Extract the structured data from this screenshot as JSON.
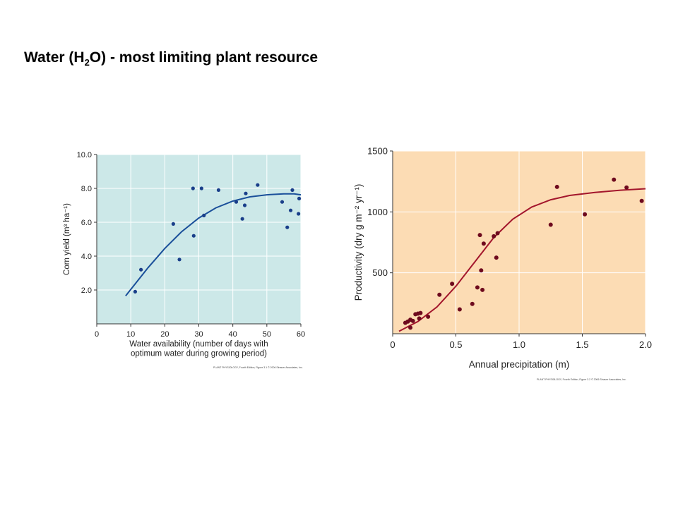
{
  "slide": {
    "title_pre": "Water (H",
    "title_sub": "2",
    "title_post": "O) - most limiting plant resource"
  },
  "chart_data": [
    {
      "type": "scatter",
      "has_fit_curve": true,
      "background": "#cce8e8",
      "point_color": "#1a3f8a",
      "curve_color": "#1a4f9a",
      "xlabel": [
        "Water availability (number of days with",
        "optimum water during growing period)"
      ],
      "ylabel": "Corn yield (m³ ha⁻¹)",
      "xlim": [
        0,
        60
      ],
      "ylim": [
        0,
        10
      ],
      "x_ticks": [
        0,
        10,
        20,
        30,
        40,
        50,
        60
      ],
      "x_tick_labels": [
        "0",
        "10",
        "20",
        "30",
        "40",
        "50",
        "60"
      ],
      "y_ticks": [
        2,
        4,
        6,
        8,
        10
      ],
      "y_tick_labels": [
        "2.0",
        "4.0",
        "6.0",
        "8.0",
        "10.0"
      ],
      "grid": true,
      "points": [
        {
          "x": 11.3,
          "y": 1.9
        },
        {
          "x": 13,
          "y": 3.2
        },
        {
          "x": 22.5,
          "y": 5.9
        },
        {
          "x": 24.3,
          "y": 3.8
        },
        {
          "x": 28.3,
          "y": 8.0
        },
        {
          "x": 28.5,
          "y": 5.2
        },
        {
          "x": 30.8,
          "y": 8.0
        },
        {
          "x": 31.5,
          "y": 6.4
        },
        {
          "x": 35.8,
          "y": 7.9
        },
        {
          "x": 41,
          "y": 7.2
        },
        {
          "x": 42.8,
          "y": 6.2
        },
        {
          "x": 43.5,
          "y": 7.0
        },
        {
          "x": 43.8,
          "y": 7.7
        },
        {
          "x": 47.3,
          "y": 8.2
        },
        {
          "x": 54.5,
          "y": 7.2
        },
        {
          "x": 56,
          "y": 5.7
        },
        {
          "x": 57,
          "y": 6.7
        },
        {
          "x": 57.5,
          "y": 7.9
        },
        {
          "x": 59.3,
          "y": 6.5
        },
        {
          "x": 59.5,
          "y": 7.4
        }
      ],
      "curve": [
        {
          "x": 8.5,
          "y": 1.65
        },
        {
          "x": 15,
          "y": 3.3
        },
        {
          "x": 20,
          "y": 4.45
        },
        {
          "x": 25,
          "y": 5.45
        },
        {
          "x": 30,
          "y": 6.25
        },
        {
          "x": 35,
          "y": 6.85
        },
        {
          "x": 40,
          "y": 7.25
        },
        {
          "x": 45,
          "y": 7.5
        },
        {
          "x": 50,
          "y": 7.62
        },
        {
          "x": 55,
          "y": 7.68
        },
        {
          "x": 58,
          "y": 7.68
        },
        {
          "x": 60,
          "y": 7.62
        }
      ],
      "credit": "PLANT PHYSIOLOGY, Fourth Edition, Figure 3.1 © 2006 Sinauer Associates, Inc."
    },
    {
      "type": "scatter",
      "has_fit_curve": true,
      "background": "#fcdcb4",
      "point_color": "#6e0a1e",
      "curve_color": "#a3162c",
      "xlabel": "Annual precipitation (m)",
      "ylabel": "Productivity (dry g m⁻² yr⁻¹)",
      "xlim": [
        0,
        2.0
      ],
      "ylim": [
        0,
        1500
      ],
      "x_ticks": [
        0,
        0.5,
        1.0,
        1.5,
        2.0
      ],
      "x_tick_labels": [
        "0",
        "0.5",
        "1.0",
        "1.5",
        "2.0"
      ],
      "y_ticks": [
        500,
        1000,
        1500
      ],
      "y_tick_labels": [
        "500",
        "1000",
        "1500"
      ],
      "grid": true,
      "points": [
        {
          "x": 0.1,
          "y": 90
        },
        {
          "x": 0.12,
          "y": 100
        },
        {
          "x": 0.14,
          "y": 115
        },
        {
          "x": 0.14,
          "y": 50
        },
        {
          "x": 0.16,
          "y": 105
        },
        {
          "x": 0.18,
          "y": 160
        },
        {
          "x": 0.2,
          "y": 165
        },
        {
          "x": 0.22,
          "y": 170
        },
        {
          "x": 0.21,
          "y": 125
        },
        {
          "x": 0.28,
          "y": 140
        },
        {
          "x": 0.37,
          "y": 320
        },
        {
          "x": 0.47,
          "y": 410
        },
        {
          "x": 0.53,
          "y": 200
        },
        {
          "x": 0.63,
          "y": 245
        },
        {
          "x": 0.67,
          "y": 380
        },
        {
          "x": 0.69,
          "y": 810
        },
        {
          "x": 0.7,
          "y": 520
        },
        {
          "x": 0.71,
          "y": 360
        },
        {
          "x": 0.72,
          "y": 740
        },
        {
          "x": 0.8,
          "y": 800
        },
        {
          "x": 0.82,
          "y": 625
        },
        {
          "x": 0.83,
          "y": 825
        },
        {
          "x": 1.25,
          "y": 895
        },
        {
          "x": 1.3,
          "y": 1205
        },
        {
          "x": 1.52,
          "y": 980
        },
        {
          "x": 1.75,
          "y": 1265
        },
        {
          "x": 1.85,
          "y": 1200
        },
        {
          "x": 1.97,
          "y": 1090
        }
      ],
      "curve": [
        {
          "x": 0.05,
          "y": 20
        },
        {
          "x": 0.2,
          "y": 100
        },
        {
          "x": 0.35,
          "y": 220
        },
        {
          "x": 0.5,
          "y": 390
        },
        {
          "x": 0.65,
          "y": 590
        },
        {
          "x": 0.8,
          "y": 790
        },
        {
          "x": 0.95,
          "y": 940
        },
        {
          "x": 1.1,
          "y": 1040
        },
        {
          "x": 1.25,
          "y": 1100
        },
        {
          "x": 1.4,
          "y": 1135
        },
        {
          "x": 1.6,
          "y": 1160
        },
        {
          "x": 1.8,
          "y": 1178
        },
        {
          "x": 2.0,
          "y": 1190
        }
      ],
      "credit": "PLANT PHYSIOLOGY, Fourth Edition, Figure 3.2 © 2006 Sinauer Associates, Inc."
    }
  ]
}
